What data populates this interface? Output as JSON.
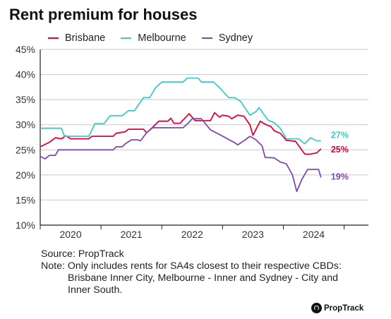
{
  "chart_data": {
    "type": "line",
    "title": "Rent premium for houses",
    "xlabel": "",
    "ylabel": "",
    "ylim": [
      0.1,
      0.45
    ],
    "y_ticks": [
      "45%",
      "40%",
      "35%",
      "30%",
      "25%",
      "20%",
      "15%",
      "10%"
    ],
    "x_ticks": [
      "2020",
      "2021",
      "2022",
      "2023",
      "2024"
    ],
    "legend_position": "top-left",
    "series": [
      {
        "name": "Brisbane",
        "color": "#e4003b",
        "end_label": "25%",
        "points": [
          [
            2019.5,
            0.256
          ],
          [
            2019.65,
            0.265
          ],
          [
            2019.75,
            0.274
          ],
          [
            2019.85,
            0.272
          ],
          [
            2019.92,
            0.278
          ],
          [
            2020.0,
            0.272
          ],
          [
            2020.3,
            0.272
          ],
          [
            2020.35,
            0.277
          ],
          [
            2020.7,
            0.277
          ],
          [
            2020.75,
            0.283
          ],
          [
            2020.9,
            0.286
          ],
          [
            2020.95,
            0.291
          ],
          [
            2021.2,
            0.291
          ],
          [
            2021.25,
            0.284
          ],
          [
            2021.35,
            0.295
          ],
          [
            2021.45,
            0.307
          ],
          [
            2021.6,
            0.307
          ],
          [
            2021.65,
            0.313
          ],
          [
            2021.7,
            0.303
          ],
          [
            2021.8,
            0.303
          ],
          [
            2021.95,
            0.322
          ],
          [
            2022.05,
            0.308
          ],
          [
            2022.3,
            0.308
          ],
          [
            2022.37,
            0.324
          ],
          [
            2022.45,
            0.315
          ],
          [
            2022.5,
            0.319
          ],
          [
            2022.6,
            0.317
          ],
          [
            2022.65,
            0.312
          ],
          [
            2022.75,
            0.319
          ],
          [
            2022.85,
            0.317
          ],
          [
            2022.95,
            0.3
          ],
          [
            2023.0,
            0.279
          ],
          [
            2023.12,
            0.307
          ],
          [
            2023.2,
            0.301
          ],
          [
            2023.3,
            0.296
          ],
          [
            2023.35,
            0.288
          ],
          [
            2023.45,
            0.283
          ],
          [
            2023.55,
            0.269
          ],
          [
            2023.7,
            0.267
          ],
          [
            2023.85,
            0.242
          ],
          [
            2023.92,
            0.241
          ],
          [
            2024.05,
            0.244
          ],
          [
            2024.12,
            0.252
          ]
        ]
      },
      {
        "name": "Melbourne",
        "color": "#3ccbc6",
        "end_label": "27%",
        "points": [
          [
            2019.5,
            0.293
          ],
          [
            2019.85,
            0.293
          ],
          [
            2019.9,
            0.277
          ],
          [
            2020.3,
            0.277
          ],
          [
            2020.4,
            0.302
          ],
          [
            2020.55,
            0.302
          ],
          [
            2020.65,
            0.318
          ],
          [
            2020.85,
            0.318
          ],
          [
            2020.95,
            0.328
          ],
          [
            2021.05,
            0.328
          ],
          [
            2021.2,
            0.354
          ],
          [
            2021.3,
            0.354
          ],
          [
            2021.4,
            0.374
          ],
          [
            2021.5,
            0.385
          ],
          [
            2021.85,
            0.385
          ],
          [
            2021.92,
            0.393
          ],
          [
            2022.1,
            0.393
          ],
          [
            2022.15,
            0.385
          ],
          [
            2022.35,
            0.385
          ],
          [
            2022.45,
            0.374
          ],
          [
            2022.6,
            0.354
          ],
          [
            2022.7,
            0.354
          ],
          [
            2022.8,
            0.346
          ],
          [
            2022.95,
            0.319
          ],
          [
            2023.05,
            0.326
          ],
          [
            2023.1,
            0.334
          ],
          [
            2023.25,
            0.309
          ],
          [
            2023.35,
            0.304
          ],
          [
            2023.45,
            0.293
          ],
          [
            2023.55,
            0.272
          ],
          [
            2023.75,
            0.272
          ],
          [
            2023.85,
            0.262
          ],
          [
            2023.95,
            0.274
          ],
          [
            2024.05,
            0.268
          ],
          [
            2024.12,
            0.268
          ]
        ]
      },
      {
        "name": "Sydney",
        "color": "#7e4ab1",
        "end_label": "19%",
        "points": [
          [
            2019.5,
            0.237
          ],
          [
            2019.58,
            0.232
          ],
          [
            2019.65,
            0.239
          ],
          [
            2019.75,
            0.239
          ],
          [
            2019.8,
            0.25
          ],
          [
            2020.0,
            0.25
          ],
          [
            2020.7,
            0.25
          ],
          [
            2020.75,
            0.256
          ],
          [
            2020.85,
            0.256
          ],
          [
            2020.9,
            0.262
          ],
          [
            2021.0,
            0.27
          ],
          [
            2021.1,
            0.27
          ],
          [
            2021.15,
            0.268
          ],
          [
            2021.25,
            0.284
          ],
          [
            2021.35,
            0.294
          ],
          [
            2021.45,
            0.294
          ],
          [
            2021.85,
            0.294
          ],
          [
            2021.95,
            0.305
          ],
          [
            2022.0,
            0.312
          ],
          [
            2022.15,
            0.312
          ],
          [
            2022.3,
            0.29
          ],
          [
            2022.55,
            0.274
          ],
          [
            2022.7,
            0.264
          ],
          [
            2022.75,
            0.26
          ],
          [
            2022.85,
            0.268
          ],
          [
            2022.95,
            0.277
          ],
          [
            2023.05,
            0.27
          ],
          [
            2023.15,
            0.258
          ],
          [
            2023.2,
            0.235
          ],
          [
            2023.35,
            0.234
          ],
          [
            2023.45,
            0.226
          ],
          [
            2023.55,
            0.222
          ],
          [
            2023.65,
            0.2
          ],
          [
            2023.72,
            0.167
          ],
          [
            2023.8,
            0.19
          ],
          [
            2023.9,
            0.211
          ],
          [
            2024.0,
            0.211
          ],
          [
            2024.08,
            0.211
          ],
          [
            2024.12,
            0.195
          ]
        ]
      }
    ]
  },
  "source": "Source: PropTrack",
  "note_line1": "Note: Only includes rents for SA4s closest to their respective CBDs:",
  "note_line2": "Brisbane Inner City, Melbourne - Inner and Sydney - City and",
  "note_line3": "Inner South.",
  "logo_text": "PropTrack"
}
